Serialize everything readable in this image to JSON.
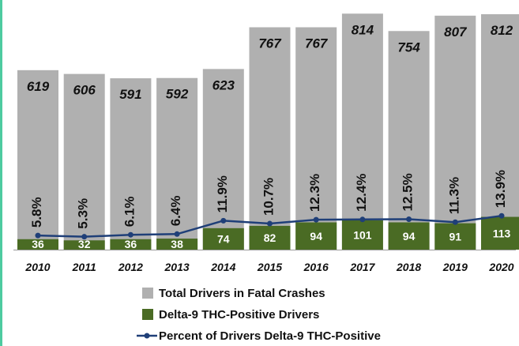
{
  "colors": {
    "total": "#b0b0b0",
    "thc": "#4a6b24",
    "percent": "#1f3f78",
    "frame": "#4ecba0"
  },
  "chart_data": {
    "type": "bar",
    "categories": [
      "2010",
      "2011",
      "2012",
      "2013",
      "2014",
      "2015",
      "2016",
      "2017",
      "2018",
      "2019",
      "2020"
    ],
    "series": [
      {
        "name": "Total Drivers in Fatal Crashes",
        "type": "bar",
        "values": [
          619,
          606,
          591,
          592,
          623,
          767,
          767,
          814,
          754,
          807,
          812
        ]
      },
      {
        "name": "Delta-9 THC-Positive Drivers",
        "type": "bar",
        "values": [
          36,
          32,
          36,
          38,
          74,
          82,
          94,
          101,
          94,
          91,
          113
        ]
      },
      {
        "name": "Percent of Drivers Delta-9 THC-Positive",
        "type": "line",
        "values": [
          5.8,
          5.3,
          6.1,
          6.4,
          11.9,
          10.7,
          12.3,
          12.4,
          12.5,
          11.3,
          13.9
        ],
        "labels": [
          "5.8%",
          "5.3%",
          "6.1%",
          "6.4%",
          "11.9%",
          "10.7%",
          "12.3%",
          "12.4%",
          "12.5%",
          "11.3%",
          "13.9%"
        ]
      }
    ],
    "legend_position": "bottom",
    "grid": false
  }
}
